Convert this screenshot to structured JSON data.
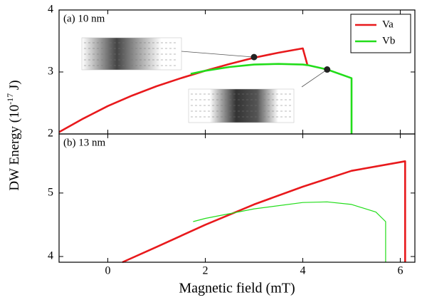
{
  "chart_data": [
    {
      "type": "line",
      "annotation": "(a) 10 nm",
      "xlim": [
        -1,
        6.3
      ],
      "ylim": [
        2,
        4
      ],
      "yticks": [
        2,
        3,
        4
      ],
      "legend": "upper right",
      "series": [
        {
          "name": "Va",
          "color": "#e8191c",
          "x": [
            -1,
            -0.5,
            0,
            0.5,
            1,
            1.5,
            2,
            2.5,
            3,
            3.5,
            4,
            4.1
          ],
          "values": [
            2.03,
            2.25,
            2.45,
            2.62,
            2.77,
            2.9,
            3.02,
            3.13,
            3.23,
            3.31,
            3.38,
            3.1
          ]
        },
        {
          "name": "Vb",
          "color": "#22dd1a",
          "x": [
            1.7,
            2,
            2.5,
            3,
            3.5,
            4,
            4.1,
            4.5,
            5,
            5
          ],
          "values": [
            2.97,
            3.02,
            3.08,
            3.12,
            3.13,
            3.12,
            3.11,
            3.04,
            2.9,
            2
          ]
        }
      ],
      "points": {
        "x": [
          3,
          4.5
        ],
        "values": [
          3.24,
          3.04
        ]
      }
    },
    {
      "type": "line",
      "annotation": "(b) 13 nm",
      "xlabel": "Magnetic field (mT)",
      "xlim": [
        -1,
        6.3
      ],
      "ylim": [
        3.91,
        5.93
      ],
      "yticks": [
        4,
        5
      ],
      "xticks": [
        0,
        2,
        4,
        6
      ],
      "series": [
        {
          "color": "#e8191c",
          "x": [
            0.3,
            1,
            2,
            3,
            4,
            5,
            6.1,
            6.1
          ],
          "values": [
            3.91,
            4.15,
            4.5,
            4.82,
            5.1,
            5.35,
            5.5,
            3.91
          ]
        },
        {
          "color": "#22dd1a",
          "x": [
            1.75,
            2,
            3,
            4,
            4.5,
            5,
            5.5,
            5.7,
            5.7
          ],
          "values": [
            4.55,
            4.6,
            4.75,
            4.85,
            4.86,
            4.82,
            4.7,
            4.55,
            3.91
          ]
        }
      ]
    }
  ],
  "ylabel_parts": [
    "DW Energy (10",
    "-17",
    " J)"
  ]
}
